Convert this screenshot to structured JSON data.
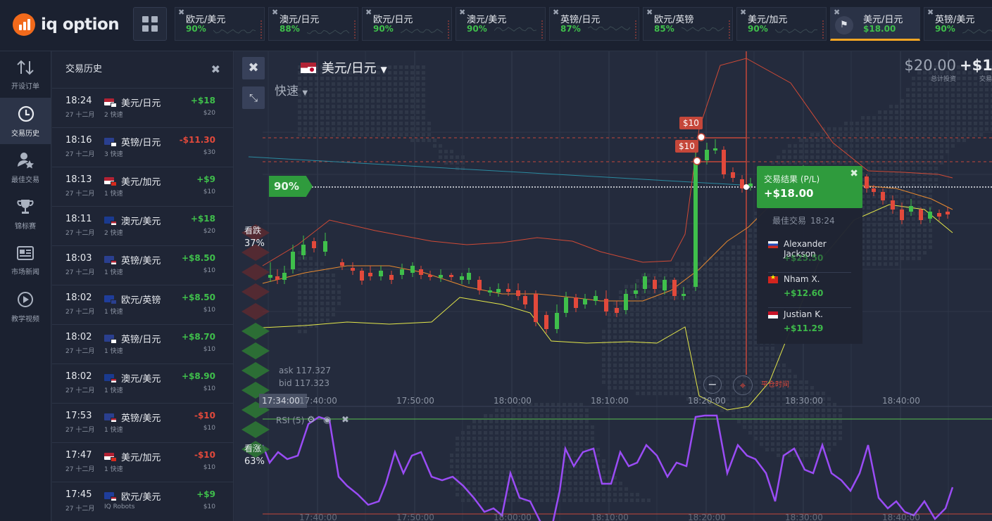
{
  "brand": {
    "name": "iq option"
  },
  "tabs": [
    {
      "name": "欧元/美元",
      "pct": "90%",
      "active": false
    },
    {
      "name": "澳元/日元",
      "pct": "88%",
      "active": false
    },
    {
      "name": "欧元/日元",
      "pct": "90%",
      "active": false
    },
    {
      "name": "澳元/美元",
      "pct": "90%",
      "active": false
    },
    {
      "name": "英镑/日元",
      "pct": "87%",
      "active": false
    },
    {
      "name": "欧元/英镑",
      "pct": "85%",
      "active": false
    },
    {
      "name": "美元/加元",
      "pct": "90%",
      "active": false
    },
    {
      "name": "美元/日元",
      "pct": "$18.00",
      "active": true
    },
    {
      "name": "英镑/美元",
      "pct": "90%",
      "active": false
    }
  ],
  "nav": [
    {
      "label": "开设订单",
      "icon": "arrows-updown-icon"
    },
    {
      "label": "交易历史",
      "icon": "history-clock-icon"
    },
    {
      "label": "最佳交易",
      "icon": "star-user-icon"
    },
    {
      "label": "锦标赛",
      "icon": "trophy-icon"
    },
    {
      "label": "市场新闻",
      "icon": "newspaper-icon"
    },
    {
      "label": "教学视频",
      "icon": "play-circle-icon"
    }
  ],
  "history": {
    "title": "交易历史",
    "rows": [
      {
        "time": "18:24",
        "date": "27 十二月",
        "asset": "美元/日元",
        "flag": "us-jp",
        "type": "2 快速",
        "pl": "+$18",
        "amount": "$20",
        "positive": true
      },
      {
        "time": "18:16",
        "date": "27 十二月",
        "asset": "英镑/日元",
        "flag": "gb-jp",
        "type": "3 快速",
        "pl": "-$11.30",
        "amount": "$30",
        "positive": false
      },
      {
        "time": "18:13",
        "date": "27 十二月",
        "asset": "美元/加元",
        "flag": "us-ca",
        "type": "1 快速",
        "pl": "+$9",
        "amount": "$10",
        "positive": true
      },
      {
        "time": "18:11",
        "date": "27 十二月",
        "asset": "澳元/美元",
        "flag": "au-us",
        "type": "2 快速",
        "pl": "+$18",
        "amount": "$20",
        "positive": true
      },
      {
        "time": "18:03",
        "date": "27 十二月",
        "asset": "英镑/美元",
        "flag": "gb-us",
        "type": "1 快速",
        "pl": "+$8.50",
        "amount": "$10",
        "positive": true
      },
      {
        "time": "18:02",
        "date": "27 十二月",
        "asset": "欧元/英镑",
        "flag": "eu-gb",
        "type": "1 快速",
        "pl": "+$8.50",
        "amount": "$10",
        "positive": true
      },
      {
        "time": "18:02",
        "date": "27 十二月",
        "asset": "英镑/日元",
        "flag": "gb-jp",
        "type": "1 快速",
        "pl": "+$8.70",
        "amount": "$10",
        "positive": true
      },
      {
        "time": "18:02",
        "date": "27 十二月",
        "asset": "澳元/美元",
        "flag": "au-us",
        "type": "1 快速",
        "pl": "+$8.90",
        "amount": "$10",
        "positive": true
      },
      {
        "time": "17:53",
        "date": "27 十二月",
        "asset": "英镑/美元",
        "flag": "gb-us",
        "type": "1 快速",
        "pl": "-$10",
        "amount": "$10",
        "positive": false
      },
      {
        "time": "17:47",
        "date": "27 十二月",
        "asset": "美元/加元",
        "flag": "us-ca",
        "type": "1 快速",
        "pl": "-$10",
        "amount": "$10",
        "positive": false
      },
      {
        "time": "17:45",
        "date": "27 十二月",
        "asset": "欧元/美元",
        "flag": "eu-us",
        "type": "IQ Robots",
        "pl": "+$9",
        "amount": "$10",
        "positive": true
      }
    ]
  },
  "chart": {
    "asset": "美元/日元",
    "mode": "快速",
    "invest_value": "$20.00",
    "invest_label": "总计投资",
    "return_value": "+$1",
    "return_label": "交易",
    "payout": "90%",
    "down_label": "看跌",
    "down_pct": "37%",
    "up_label": "看涨",
    "up_pct": "63%",
    "ask": "ask 117.327",
    "bid": "bid 117.323",
    "cursor_time": "17:34:00",
    "rsi_label": "RSI (5)",
    "tag1": "$10",
    "tag2": "$10",
    "end_time_label": "平仓时间",
    "time_ticks": [
      "17:40:00",
      "17:50:00",
      "18:00:00",
      "18:10:00",
      "18:20:00",
      "18:30:00",
      "18:40:00"
    ],
    "bottom_ticks": [
      "17:40:00",
      "17:50:00",
      "18:00:00",
      "18:10:00",
      "18:20:00",
      "18:30:00",
      "18:40:00"
    ]
  },
  "result": {
    "title": "交易结果 (P/L)",
    "value": "+$18.00"
  },
  "best": {
    "title": "最佳交易",
    "time": "18:24",
    "traders": [
      {
        "name": "Alexander Jackson",
        "profit": "+$25.50",
        "flag": "si"
      },
      {
        "name": "Nham X.",
        "profit": "+$12.60",
        "flag": "vn"
      },
      {
        "name": "Justian K.",
        "profit": "+$11.29",
        "flag": "id"
      }
    ]
  }
}
